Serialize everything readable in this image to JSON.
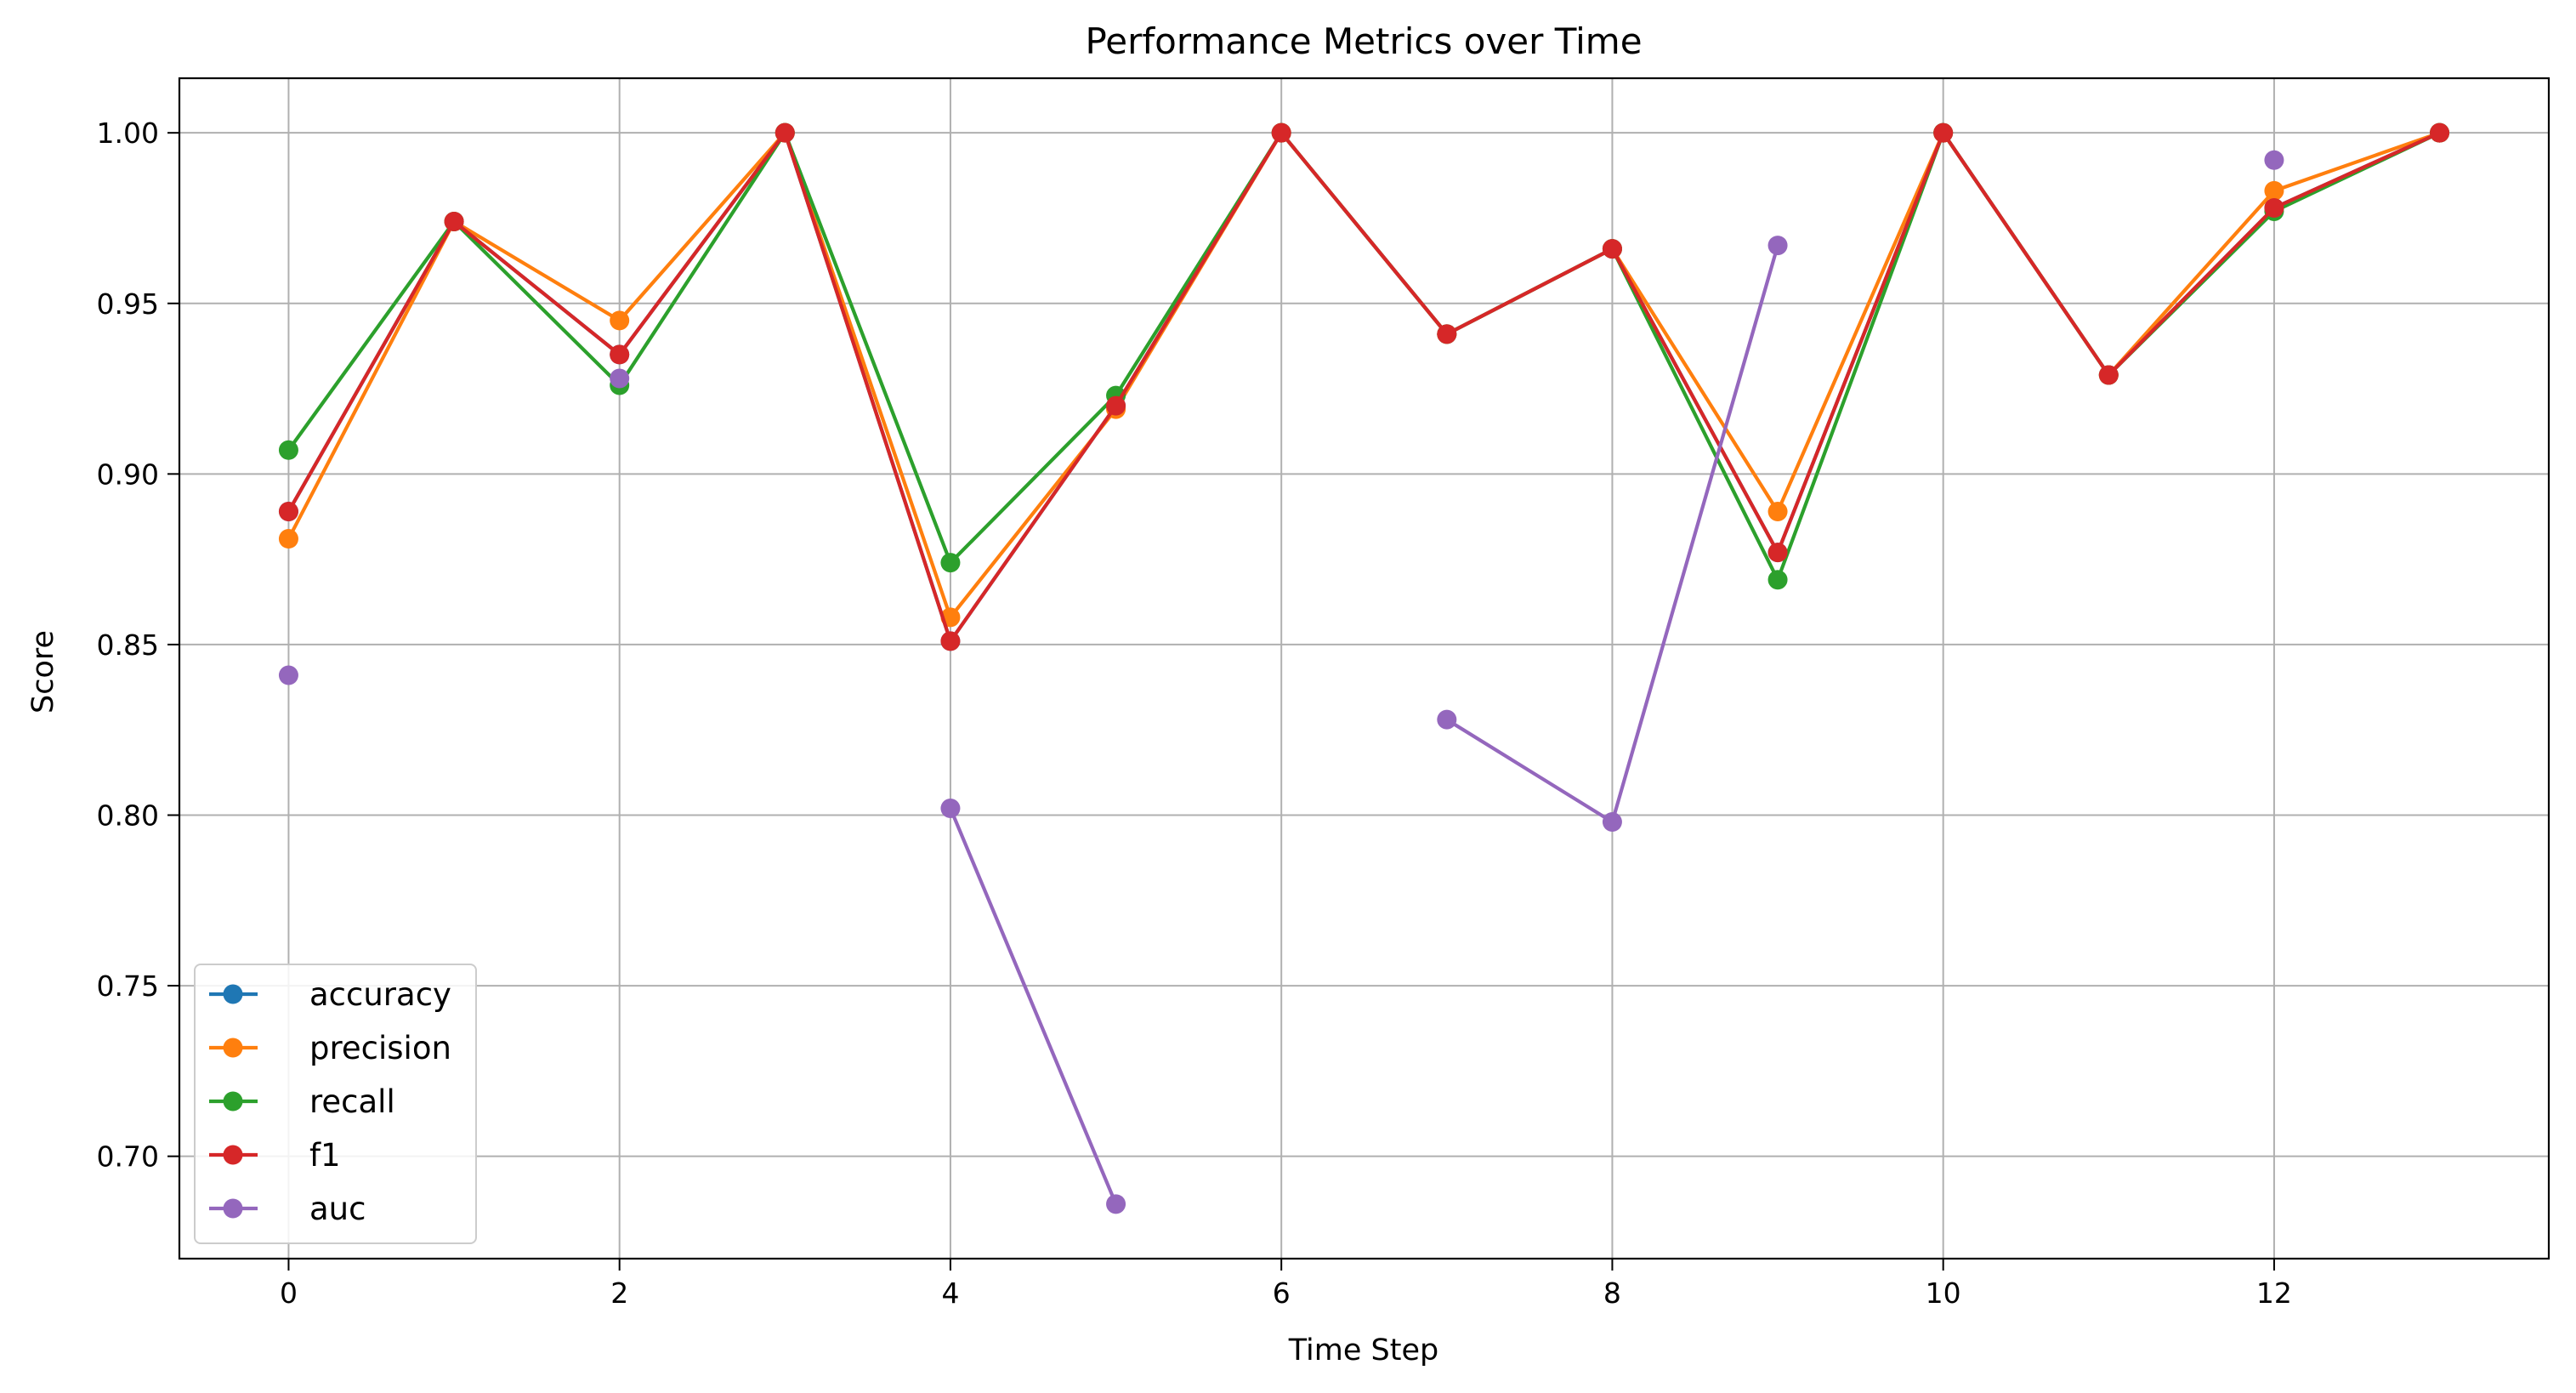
{
  "chart_data": {
    "type": "line",
    "title": "Performance Metrics over Time",
    "xlabel": "Time Step",
    "ylabel": "Score",
    "xlim": [
      -0.66,
      13.66
    ],
    "ylim": [
      0.67,
      1.016
    ],
    "x_ticks": [
      0,
      2,
      4,
      6,
      8,
      10,
      12
    ],
    "x_tick_labels": [
      "0",
      "2",
      "4",
      "6",
      "8",
      "10",
      "12"
    ],
    "y_ticks": [
      0.7,
      0.75,
      0.8,
      0.85,
      0.9,
      0.95,
      1.0
    ],
    "y_tick_labels": [
      "0.70",
      "0.75",
      "0.80",
      "0.85",
      "0.90",
      "0.95",
      "1.00"
    ],
    "grid": true,
    "legend_position": "lower-left",
    "x": [
      0,
      1,
      2,
      3,
      4,
      5,
      6,
      7,
      8,
      9,
      10,
      11,
      12,
      13
    ],
    "series": [
      {
        "name": "accuracy",
        "color": "#1f77b4",
        "values": [
          0.889,
          0.974,
          0.935,
          1.0,
          0.851,
          0.92,
          1.0,
          0.941,
          0.966,
          0.877,
          1.0,
          0.929,
          0.978,
          1.0
        ]
      },
      {
        "name": "precision",
        "color": "#ff7f0e",
        "values": [
          0.881,
          0.974,
          0.945,
          1.0,
          0.858,
          0.919,
          1.0,
          0.941,
          0.966,
          0.889,
          1.0,
          0.929,
          0.983,
          1.0
        ]
      },
      {
        "name": "recall",
        "color": "#2ca02c",
        "values": [
          0.907,
          0.974,
          0.926,
          1.0,
          0.874,
          0.923,
          1.0,
          0.941,
          0.966,
          0.869,
          1.0,
          0.929,
          0.977,
          1.0
        ]
      },
      {
        "name": "f1",
        "color": "#d62728",
        "values": [
          0.889,
          0.974,
          0.935,
          1.0,
          0.851,
          0.92,
          1.0,
          0.941,
          0.966,
          0.877,
          1.0,
          0.929,
          0.978,
          1.0
        ]
      },
      {
        "name": "auc",
        "color": "#9467bd",
        "values": [
          0.841,
          null,
          0.928,
          null,
          0.802,
          0.686,
          null,
          0.828,
          0.798,
          0.967,
          null,
          null,
          0.992,
          null
        ]
      }
    ]
  }
}
